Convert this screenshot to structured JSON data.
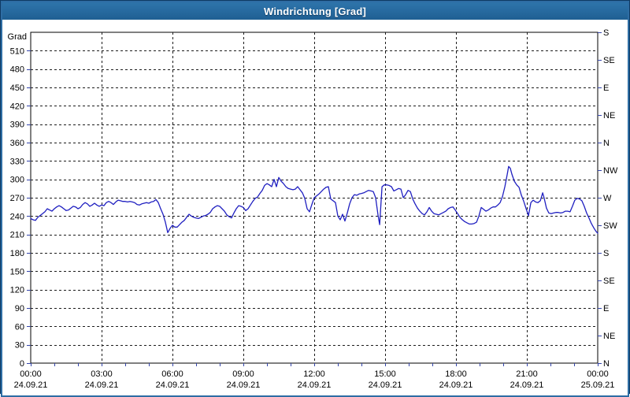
{
  "window": {
    "title": "Windrichtung [Grad]"
  },
  "colors": {
    "titlebar": "#26699e",
    "window_border": "#2e6da4",
    "window_border_outer": "#0f3a63",
    "plot_background": "#ffffff",
    "grid": "#1c1c1c",
    "axis": "#000000",
    "tick_mark": "#3344aa",
    "line": "#1f1fc0",
    "text": "#000000"
  },
  "chart_data": {
    "type": "line",
    "title": "Windrichtung [Grad]",
    "ylabel": "Grad",
    "grid": true,
    "y_axis": {
      "min": 0,
      "max": 540,
      "tick_step": 30,
      "tick_labels": [
        "0",
        "30",
        "60",
        "90",
        "120",
        "150",
        "180",
        "210",
        "240",
        "270",
        "300",
        "330",
        "360",
        "390",
        "420",
        "450",
        "480",
        "510"
      ],
      "unit_label": "Grad"
    },
    "right_axis": {
      "tick_step_degrees": 45,
      "labels_top_to_bottom": [
        "S",
        "SE",
        "E",
        "NE",
        "N",
        "NW",
        "W",
        "SW",
        "S",
        "SE",
        "E",
        "NE",
        "N"
      ]
    },
    "x_axis": {
      "unit": "time",
      "minor_tick_hours": 1,
      "major_gridline_hours": 3,
      "ticks": [
        {
          "hour": 0,
          "time": "00:00",
          "date": "24.09.21"
        },
        {
          "hour": 3,
          "time": "03:00",
          "date": "24.09.21"
        },
        {
          "hour": 6,
          "time": "06:00",
          "date": "24.09.21"
        },
        {
          "hour": 9,
          "time": "09:00",
          "date": "24.09.21"
        },
        {
          "hour": 12,
          "time": "12:00",
          "date": "24.09.21"
        },
        {
          "hour": 15,
          "time": "15:00",
          "date": "24.09.21"
        },
        {
          "hour": 18,
          "time": "18:00",
          "date": "24.09.21"
        },
        {
          "hour": 21,
          "time": "21:00",
          "date": "24.09.21"
        },
        {
          "hour": 24,
          "time": "00:00",
          "date": "25.09.21"
        }
      ]
    },
    "series": [
      {
        "name": "Windrichtung",
        "color": "#1f1fc0",
        "points": [
          [
            0,
            236
          ],
          [
            0.1,
            234
          ],
          [
            0.2,
            233
          ],
          [
            0.3,
            238
          ],
          [
            0.4,
            241
          ],
          [
            0.5,
            244
          ],
          [
            0.6,
            247
          ],
          [
            0.7,
            252
          ],
          [
            0.8,
            250
          ],
          [
            0.9,
            248
          ],
          [
            1,
            252
          ],
          [
            1.1,
            255
          ],
          [
            1.2,
            257
          ],
          [
            1.3,
            255
          ],
          [
            1.4,
            252
          ],
          [
            1.5,
            249
          ],
          [
            1.6,
            250
          ],
          [
            1.7,
            253
          ],
          [
            1.8,
            256
          ],
          [
            1.9,
            255
          ],
          [
            2,
            252
          ],
          [
            2.1,
            254
          ],
          [
            2.2,
            259
          ],
          [
            2.3,
            262
          ],
          [
            2.4,
            260
          ],
          [
            2.5,
            256
          ],
          [
            2.6,
            258
          ],
          [
            2.7,
            261
          ],
          [
            2.8,
            258
          ],
          [
            2.9,
            256
          ],
          [
            3,
            258
          ],
          [
            3.1,
            257
          ],
          [
            3.2,
            262
          ],
          [
            3.3,
            264
          ],
          [
            3.4,
            262
          ],
          [
            3.5,
            259
          ],
          [
            3.6,
            263
          ],
          [
            3.7,
            266
          ],
          [
            3.8,
            265
          ],
          [
            3.9,
            264
          ],
          [
            4,
            264
          ],
          [
            4.1,
            263
          ],
          [
            4.2,
            264
          ],
          [
            4.3,
            263
          ],
          [
            4.4,
            262
          ],
          [
            4.5,
            259
          ],
          [
            4.6,
            258
          ],
          [
            4.7,
            260
          ],
          [
            4.8,
            261
          ],
          [
            4.9,
            262
          ],
          [
            5,
            261
          ],
          [
            5.1,
            263
          ],
          [
            5.2,
            264
          ],
          [
            5.3,
            267
          ],
          [
            5.4,
            262
          ],
          [
            5.5,
            252
          ],
          [
            5.6,
            243
          ],
          [
            5.7,
            230
          ],
          [
            5.8,
            213
          ],
          [
            5.9,
            220
          ],
          [
            6,
            225
          ],
          [
            6.1,
            222
          ],
          [
            6.2,
            222
          ],
          [
            6.3,
            226
          ],
          [
            6.4,
            230
          ],
          [
            6.5,
            233
          ],
          [
            6.6,
            238
          ],
          [
            6.7,
            243
          ],
          [
            6.8,
            240
          ],
          [
            6.9,
            238
          ],
          [
            7,
            237
          ],
          [
            7.1,
            236
          ],
          [
            7.2,
            238
          ],
          [
            7.3,
            240
          ],
          [
            7.4,
            241
          ],
          [
            7.5,
            243
          ],
          [
            7.6,
            246
          ],
          [
            7.7,
            252
          ],
          [
            7.8,
            255
          ],
          [
            7.9,
            257
          ],
          [
            8,
            256
          ],
          [
            8.1,
            252
          ],
          [
            8.2,
            248
          ],
          [
            8.3,
            242
          ],
          [
            8.4,
            239
          ],
          [
            8.5,
            237
          ],
          [
            8.6,
            245
          ],
          [
            8.7,
            252
          ],
          [
            8.8,
            257
          ],
          [
            8.9,
            256
          ],
          [
            9,
            254
          ],
          [
            9.1,
            249
          ],
          [
            9.2,
            252
          ],
          [
            9.3,
            258
          ],
          [
            9.4,
            264
          ],
          [
            9.5,
            269
          ],
          [
            9.6,
            271
          ],
          [
            9.7,
            277
          ],
          [
            9.8,
            282
          ],
          [
            9.9,
            290
          ],
          [
            10,
            293
          ],
          [
            10.1,
            291
          ],
          [
            10.2,
            288
          ],
          [
            10.3,
            300
          ],
          [
            10.4,
            288
          ],
          [
            10.5,
            303
          ],
          [
            10.6,
            297
          ],
          [
            10.7,
            293
          ],
          [
            10.8,
            288
          ],
          [
            10.9,
            285
          ],
          [
            11,
            284
          ],
          [
            11.1,
            283
          ],
          [
            11.2,
            284
          ],
          [
            11.3,
            288
          ],
          [
            11.4,
            283
          ],
          [
            11.5,
            278
          ],
          [
            11.6,
            269
          ],
          [
            11.7,
            252
          ],
          [
            11.8,
            247
          ],
          [
            11.9,
            259
          ],
          [
            12,
            270
          ],
          [
            12.1,
            273
          ],
          [
            12.2,
            276
          ],
          [
            12.3,
            280
          ],
          [
            12.4,
            284
          ],
          [
            12.5,
            287
          ],
          [
            12.6,
            288
          ],
          [
            12.7,
            268
          ],
          [
            12.8,
            265
          ],
          [
            12.9,
            262
          ],
          [
            13,
            240
          ],
          [
            13.1,
            234
          ],
          [
            13.2,
            243
          ],
          [
            13.3,
            232
          ],
          [
            13.4,
            245
          ],
          [
            13.5,
            260
          ],
          [
            13.6,
            270
          ],
          [
            13.7,
            275
          ],
          [
            13.8,
            274
          ],
          [
            13.9,
            276
          ],
          [
            14,
            277
          ],
          [
            14.1,
            278
          ],
          [
            14.2,
            280
          ],
          [
            14.3,
            282
          ],
          [
            14.4,
            281
          ],
          [
            14.5,
            280
          ],
          [
            14.6,
            270
          ],
          [
            14.7,
            242
          ],
          [
            14.77,
            226
          ],
          [
            14.87,
            288
          ],
          [
            14.97,
            291
          ],
          [
            15.07,
            291
          ],
          [
            15.17,
            290
          ],
          [
            15.27,
            288
          ],
          [
            15.37,
            281
          ],
          [
            15.47,
            283
          ],
          [
            15.57,
            285
          ],
          [
            15.67,
            284
          ],
          [
            15.77,
            270
          ],
          [
            15.87,
            275
          ],
          [
            15.97,
            282
          ],
          [
            16.07,
            280
          ],
          [
            16.17,
            268
          ],
          [
            16.27,
            260
          ],
          [
            16.37,
            253
          ],
          [
            16.47,
            248
          ],
          [
            16.57,
            244
          ],
          [
            16.67,
            242
          ],
          [
            16.77,
            247
          ],
          [
            16.87,
            254
          ],
          [
            16.97,
            248
          ],
          [
            17.07,
            244
          ],
          [
            17.17,
            243
          ],
          [
            17.27,
            242
          ],
          [
            17.37,
            244
          ],
          [
            17.47,
            246
          ],
          [
            17.57,
            248
          ],
          [
            17.67,
            252
          ],
          [
            17.77,
            254
          ],
          [
            17.87,
            255
          ],
          [
            17.97,
            250
          ],
          [
            18.07,
            244
          ],
          [
            18.17,
            238
          ],
          [
            18.27,
            234
          ],
          [
            18.37,
            231
          ],
          [
            18.47,
            229
          ],
          [
            18.57,
            227
          ],
          [
            18.67,
            227
          ],
          [
            18.77,
            228
          ],
          [
            18.87,
            230
          ],
          [
            18.97,
            240
          ],
          [
            19.07,
            254
          ],
          [
            19.17,
            251
          ],
          [
            19.27,
            248
          ],
          [
            19.37,
            250
          ],
          [
            19.47,
            253
          ],
          [
            19.57,
            255
          ],
          [
            19.67,
            255
          ],
          [
            19.77,
            258
          ],
          [
            19.87,
            262
          ],
          [
            19.97,
            272
          ],
          [
            20.07,
            288
          ],
          [
            20.17,
            308
          ],
          [
            20.23,
            321
          ],
          [
            20.3,
            318
          ],
          [
            20.37,
            308
          ],
          [
            20.47,
            297
          ],
          [
            20.57,
            291
          ],
          [
            20.67,
            287
          ],
          [
            20.77,
            274
          ],
          [
            20.87,
            264
          ],
          [
            20.97,
            252
          ],
          [
            21.07,
            241
          ],
          [
            21.17,
            262
          ],
          [
            21.27,
            266
          ],
          [
            21.37,
            263
          ],
          [
            21.47,
            262
          ],
          [
            21.57,
            265
          ],
          [
            21.67,
            278
          ],
          [
            21.73,
            270
          ],
          [
            21.83,
            253
          ],
          [
            21.93,
            245
          ],
          [
            22.03,
            244
          ],
          [
            22.13,
            245
          ],
          [
            22.23,
            246
          ],
          [
            22.33,
            246
          ],
          [
            22.43,
            245
          ],
          [
            22.53,
            246
          ],
          [
            22.63,
            248
          ],
          [
            22.73,
            248
          ],
          [
            22.83,
            247
          ],
          [
            22.93,
            256
          ],
          [
            23.03,
            266
          ],
          [
            23.13,
            269
          ],
          [
            23.23,
            268
          ],
          [
            23.33,
            265
          ],
          [
            23.43,
            256
          ],
          [
            23.53,
            245
          ],
          [
            23.63,
            237
          ],
          [
            23.73,
            228
          ],
          [
            23.83,
            221
          ],
          [
            23.93,
            215
          ],
          [
            24,
            212
          ]
        ]
      }
    ]
  }
}
